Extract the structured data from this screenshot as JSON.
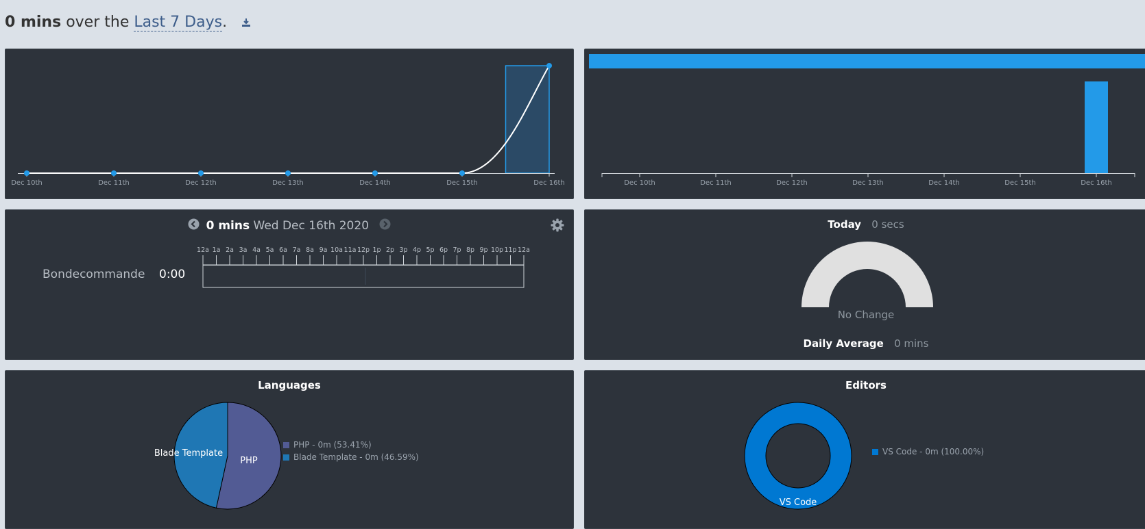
{
  "header": {
    "total": "0 mins",
    "middle": " over the ",
    "range_link": "Last 7 Days",
    "period": "."
  },
  "activity_chart": {
    "x_labels": [
      "Dec 10th",
      "Dec 11th",
      "Dec 12th",
      "Dec 13th",
      "Dec 14th",
      "Dec 15th",
      "Dec 16th"
    ]
  },
  "bar_chart": {
    "x_labels": [
      "Dec 10th",
      "Dec 11th",
      "Dec 12th",
      "Dec 13th",
      "Dec 14th",
      "Dec 15th",
      "Dec 16th"
    ]
  },
  "day_view": {
    "total": "0 mins",
    "date": "Wed Dec 16th 2020",
    "hour_labels": [
      "12a",
      "1a",
      "2a",
      "3a",
      "4a",
      "5a",
      "6a",
      "7a",
      "8a",
      "9a",
      "10a",
      "11a",
      "12p",
      "1p",
      "2p",
      "3p",
      "4p",
      "5p",
      "6p",
      "7p",
      "8p",
      "9p",
      "10p",
      "11p",
      "12a"
    ],
    "project_name": "Bondecommande",
    "project_time": "0:00"
  },
  "today": {
    "label": "Today",
    "value": "0 secs",
    "change": "No Change",
    "avg_label": "Daily Average",
    "avg_value": "0 mins"
  },
  "languages": {
    "title": "Languages",
    "legend": [
      {
        "text": "PHP - 0m (53.41%)",
        "color": "#525b94"
      },
      {
        "text": "Blade Template - 0m (46.59%)",
        "color": "#1f77b4"
      }
    ],
    "slice_labels": [
      "PHP",
      "Blade Template"
    ]
  },
  "editors": {
    "title": "Editors",
    "legend": [
      {
        "text": "VS Code - 0m (100.00%)",
        "color": "#0078d2"
      }
    ],
    "slice_label": "VS Code"
  },
  "colors": {
    "panel_bg": "#2d333b",
    "accent_blue": "#239ae8",
    "page_bg": "#dbe1e8"
  },
  "chart_data": [
    {
      "type": "line",
      "x": [
        "Dec 10th",
        "Dec 11th",
        "Dec 12th",
        "Dec 13th",
        "Dec 14th",
        "Dec 15th",
        "Dec 16th"
      ],
      "values": [
        0,
        0,
        0,
        0,
        0,
        0,
        1
      ],
      "highlight_range": [
        "Dec 15th",
        "Dec 16th"
      ],
      "title": "",
      "xlabel": "",
      "ylabel": ""
    },
    {
      "type": "bar",
      "categories": [
        "Dec 10th",
        "Dec 11th",
        "Dec 12th",
        "Dec 13th",
        "Dec 14th",
        "Dec 15th",
        "Dec 16th"
      ],
      "values": [
        0,
        0,
        0,
        0,
        0,
        0,
        1
      ],
      "title": "",
      "xlabel": "",
      "ylabel": ""
    },
    {
      "type": "pie",
      "categories": [
        "PHP",
        "Blade Template"
      ],
      "values": [
        53.41,
        46.59
      ],
      "title": "Languages"
    },
    {
      "type": "pie",
      "categories": [
        "VS Code"
      ],
      "values": [
        100.0
      ],
      "title": "Editors"
    }
  ]
}
